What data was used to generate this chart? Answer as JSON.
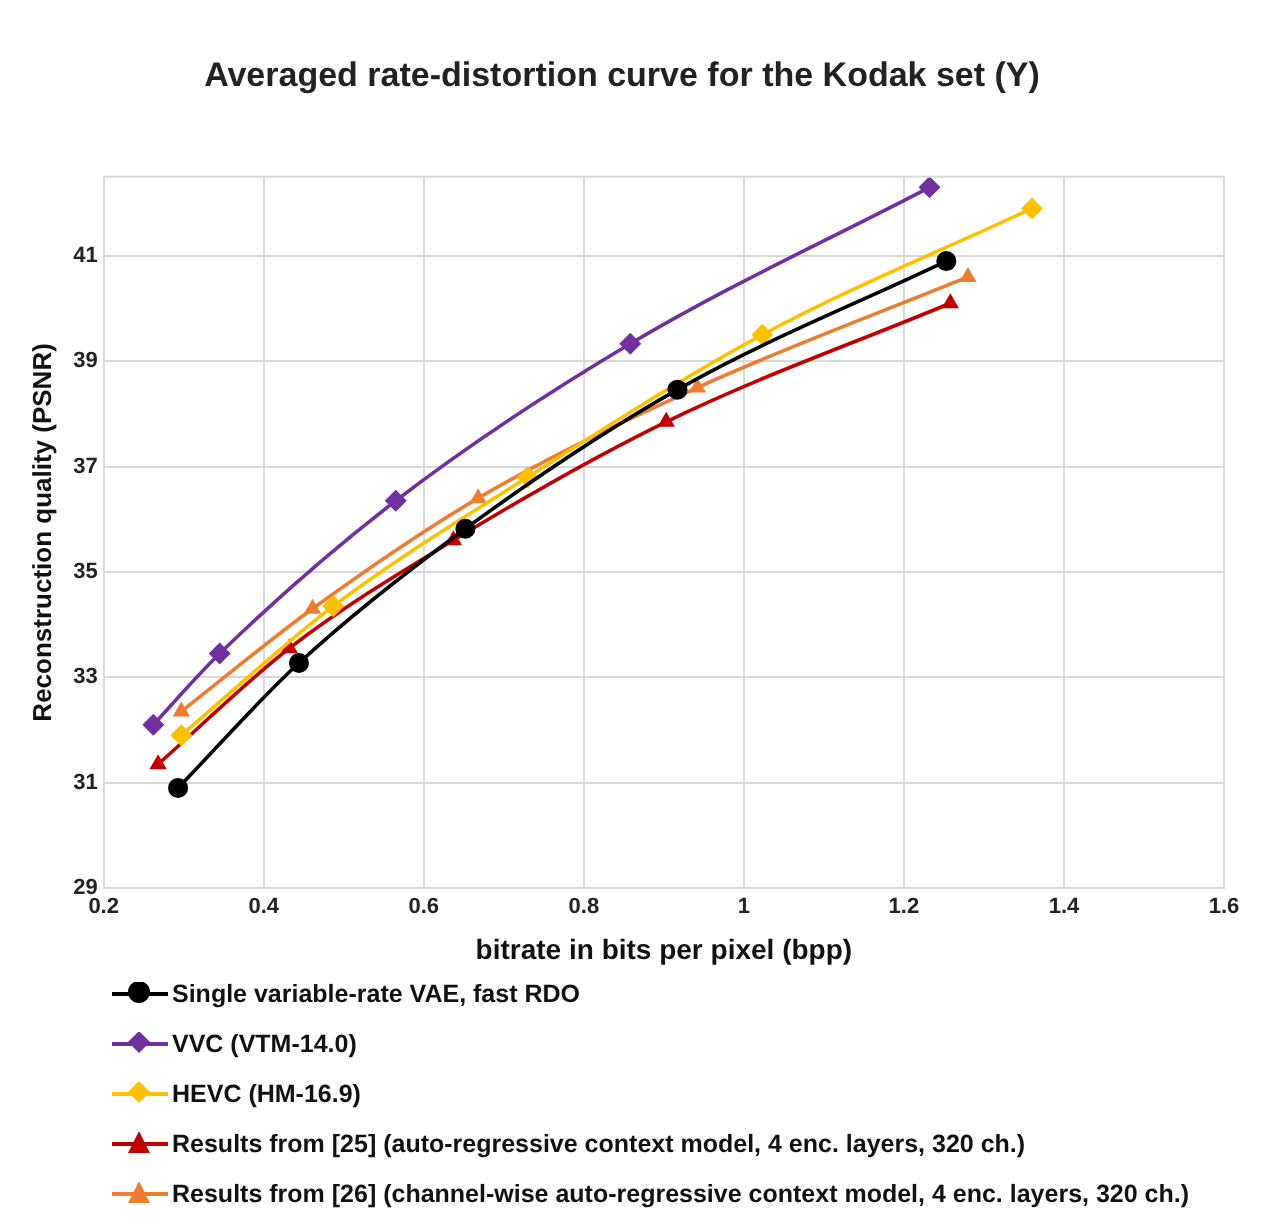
{
  "chart_data": {
    "type": "line",
    "title": "Averaged rate-distortion curve for the Kodak set (Y)",
    "xlabel": "bitrate in bits per pixel (bpp)",
    "ylabel": "Reconstruction quality (PSNR)",
    "xlim": [
      0.2,
      1.6
    ],
    "xticks": [
      0.2,
      0.4,
      0.6,
      0.8,
      1,
      1.2,
      1.4,
      1.6
    ],
    "ylim": [
      29,
      42.5
    ],
    "yticks": [
      29,
      31,
      33,
      35,
      37,
      39,
      41
    ],
    "grid": true,
    "legend": "bottom",
    "series": [
      {
        "name": "Single variable-rate VAE, fast RDO",
        "color": "#000000",
        "marker": "circle",
        "x": [
          0.293,
          0.444,
          0.652,
          0.917,
          1.253
        ],
        "values": [
          30.9,
          33.27,
          35.82,
          38.46,
          40.9
        ]
      },
      {
        "name": "VVC (VTM-14.0)",
        "color": "#7030a0",
        "marker": "diamond",
        "x": [
          0.262,
          0.345,
          0.565,
          0.858,
          1.232
        ],
        "values": [
          32.1,
          33.45,
          36.35,
          39.33,
          42.3
        ]
      },
      {
        "name": "HEVC (HM-16.9)",
        "color": "#ffc000",
        "marker": "diamond",
        "x": [
          0.297,
          0.487,
          0.73,
          1.023,
          1.36
        ],
        "values": [
          31.9,
          34.35,
          36.8,
          39.5,
          41.9
        ]
      },
      {
        "name": "Results from [25] (auto-regressive context model, 4 enc. layers, 320 ch.)",
        "color": "#c00000",
        "marker": "triangle",
        "x": [
          0.268,
          0.432,
          0.637,
          0.903,
          1.258
        ],
        "values": [
          31.35,
          33.55,
          35.6,
          37.85,
          40.1
        ]
      },
      {
        "name": "Results from [26] (channel-wise auto-regressive context model, 4 enc. layers, 320 ch.)",
        "color": "#ed7d31",
        "marker": "triangle",
        "x": [
          0.297,
          0.461,
          0.668,
          0.942,
          1.28
        ],
        "values": [
          32.35,
          34.3,
          36.4,
          38.5,
          40.6
        ]
      }
    ]
  }
}
